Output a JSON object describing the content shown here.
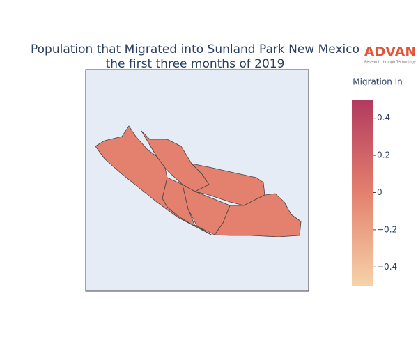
{
  "chart_data": {
    "type": "choropleth",
    "title": [
      "Population that Migrated into Sunland Park New Mexico",
      "the first three months of 2019"
    ],
    "logo": {
      "name": "ADVAN",
      "tagline": "Research through Technology"
    },
    "values": [
      0,
      0,
      0,
      0,
      0,
      0
    ],
    "colorbar": {
      "title": "Migration In",
      "clim": [
        -0.5,
        0.5
      ],
      "ticks": [
        {
          "value": -0.4,
          "label": "−0.4"
        },
        {
          "value": -0.2,
          "label": "−0.2"
        },
        0,
        0.2,
        0.4
      ],
      "colorscale": [
        "#f6d2a9",
        "#e3806e",
        "#b3395f"
      ]
    },
    "background": "#e5ecf6",
    "border_color": "#444444"
  }
}
